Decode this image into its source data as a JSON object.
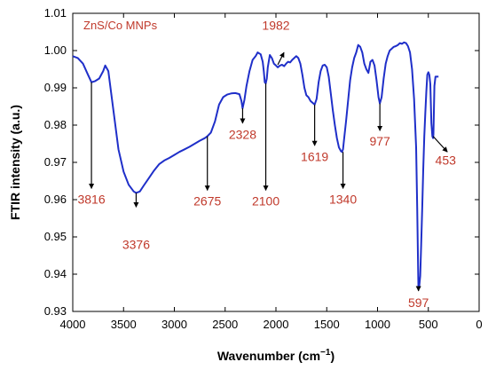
{
  "chart_data": {
    "type": "line",
    "xlabel": "Wavenumber (cm",
    "xlabel_sup": "−1",
    "xlabel_tail": ")",
    "ylabel": "FTIR intensity (a.u.)",
    "xlim": [
      4000,
      0
    ],
    "ylim": [
      0.93,
      1.01
    ],
    "x_ticks": [
      "4000",
      "3500",
      "3000",
      "2500",
      "2000",
      "1500",
      "1000",
      "500",
      "0"
    ],
    "y_ticks": [
      "0.93",
      "0.94",
      "0.95",
      "0.96",
      "0.97",
      "0.98",
      "0.99",
      "1.00",
      "1.01"
    ],
    "series": [
      {
        "name": "ZnS/Co MNPs",
        "color": "#1f2fc9",
        "x": [
          4000,
          3950,
          3900,
          3850,
          3816,
          3780,
          3740,
          3700,
          3680,
          3650,
          3600,
          3550,
          3500,
          3450,
          3400,
          3376,
          3340,
          3300,
          3250,
          3200,
          3150,
          3100,
          3050,
          3000,
          2950,
          2900,
          2850,
          2800,
          2750,
          2700,
          2675,
          2640,
          2600,
          2560,
          2520,
          2480,
          2440,
          2400,
          2360,
          2340,
          2328,
          2310,
          2290,
          2260,
          2230,
          2200,
          2180,
          2150,
          2130,
          2120,
          2110,
          2100,
          2090,
          2080,
          2060,
          2040,
          2020,
          2000,
          1982,
          1960,
          1940,
          1920,
          1900,
          1880,
          1860,
          1840,
          1820,
          1800,
          1780,
          1760,
          1740,
          1720,
          1700,
          1680,
          1660,
          1640,
          1619,
          1600,
          1580,
          1560,
          1540,
          1520,
          1500,
          1480,
          1460,
          1440,
          1420,
          1400,
          1380,
          1360,
          1350,
          1340,
          1330,
          1310,
          1290,
          1270,
          1250,
          1230,
          1210,
          1190,
          1170,
          1150,
          1130,
          1110,
          1090,
          1070,
          1050,
          1030,
          1010,
          990,
          977,
          960,
          940,
          920,
          900,
          880,
          860,
          840,
          820,
          800,
          780,
          760,
          740,
          720,
          700,
          680,
          660,
          640,
          620,
          610,
          600,
          597,
          590,
          580,
          570,
          560,
          550,
          540,
          530,
          520,
          510,
          500,
          490,
          480,
          470,
          460,
          453,
          450,
          440,
          430,
          420,
          410,
          400
        ],
        "values": [
          0.9985,
          0.998,
          0.9965,
          0.9935,
          0.9915,
          0.9918,
          0.9925,
          0.9945,
          0.996,
          0.9945,
          0.984,
          0.9735,
          0.9675,
          0.964,
          0.9622,
          0.9618,
          0.9622,
          0.9638,
          0.9658,
          0.9678,
          0.9695,
          0.9705,
          0.9712,
          0.972,
          0.9728,
          0.9735,
          0.9742,
          0.975,
          0.9758,
          0.9765,
          0.977,
          0.978,
          0.981,
          0.9855,
          0.9875,
          0.9882,
          0.9885,
          0.9886,
          0.9883,
          0.9865,
          0.9845,
          0.9868,
          0.9905,
          0.9945,
          0.9975,
          0.9985,
          0.9995,
          0.999,
          0.997,
          0.9945,
          0.9915,
          0.9912,
          0.9925,
          0.9955,
          0.9988,
          0.998,
          0.9965,
          0.996,
          0.9955,
          0.996,
          0.9962,
          0.9958,
          0.9965,
          0.997,
          0.9968,
          0.9975,
          0.998,
          0.9985,
          0.998,
          0.9965,
          0.9935,
          0.99,
          0.988,
          0.9875,
          0.9865,
          0.986,
          0.9855,
          0.987,
          0.9915,
          0.9945,
          0.996,
          0.9962,
          0.9955,
          0.993,
          0.9885,
          0.984,
          0.98,
          0.9765,
          0.974,
          0.973,
          0.9728,
          0.9735,
          0.976,
          0.981,
          0.9865,
          0.992,
          0.9955,
          0.998,
          0.9995,
          1.0015,
          1.001,
          0.9995,
          0.9965,
          0.995,
          0.994,
          0.997,
          0.9975,
          0.996,
          0.992,
          0.9875,
          0.9858,
          0.9875,
          0.9925,
          0.9965,
          0.9985,
          1.0,
          1.0005,
          1.001,
          1.0012,
          1.0015,
          1.002,
          1.0018,
          1.0022,
          1.002,
          1.0012,
          0.9995,
          0.995,
          0.987,
          0.974,
          0.958,
          0.9405,
          0.936,
          0.9365,
          0.9395,
          0.948,
          0.958,
          0.968,
          0.977,
          0.983,
          0.989,
          0.9935,
          0.9942,
          0.9935,
          0.991,
          0.9805,
          0.977,
          0.9765,
          0.9775,
          0.9905,
          0.993,
          0.993,
          0.993,
          0.993
        ]
      }
    ],
    "annotations": [
      {
        "label": "3816",
        "x": 3816,
        "from": 0.9915,
        "to": 0.963,
        "text_y": 0.9589,
        "text_x": 3816,
        "anchor": "middle"
      },
      {
        "label": "3376",
        "x": 3376,
        "from": 0.9618,
        "to": 0.958,
        "text_y": 0.9468,
        "text_x": 3376,
        "anchor": "middle"
      },
      {
        "label": "2675",
        "x": 2675,
        "from": 0.977,
        "to": 0.9625,
        "text_y": 0.9584,
        "text_x": 2675,
        "anchor": "middle"
      },
      {
        "label": "2328",
        "x": 2328,
        "from": 0.9845,
        "to": 0.9805,
        "text_y": 0.9763,
        "text_x": 2328,
        "anchor": "middle"
      },
      {
        "label": "2100",
        "x": 2100,
        "from": 0.9912,
        "to": 0.9625,
        "text_y": 0.9584,
        "text_x": 2100,
        "anchor": "middle"
      },
      {
        "label": "1982",
        "x": 1982,
        "from": 0.9962,
        "to": 0.9995,
        "text_y": 1.0056,
        "text_x": 2000,
        "anchor": "middle"
      },
      {
        "label": "1619",
        "x": 1619,
        "from": 0.9855,
        "to": 0.9745,
        "text_y": 0.9703,
        "text_x": 1619,
        "anchor": "middle"
      },
      {
        "label": "1340",
        "x": 1340,
        "from": 0.9728,
        "to": 0.963,
        "text_y": 0.9589,
        "text_x": 1340,
        "anchor": "middle"
      },
      {
        "label": "977",
        "x": 977,
        "from": 0.9858,
        "to": 0.9785,
        "text_y": 0.9745,
        "text_x": 977,
        "anchor": "middle"
      },
      {
        "label": "453",
        "x": 453,
        "from": 0.977,
        "to": 0.9728,
        "text_y": 0.9694,
        "text_x": 330,
        "anchor": "middle"
      },
      {
        "label": "597",
        "x": 597,
        "from": 0.9365,
        "to": 0.9355,
        "text_y": 0.9312,
        "text_x": 597,
        "anchor": "middle"
      }
    ],
    "grid": false,
    "legend": "top-left",
    "colors": {
      "line": "#1f2fc9",
      "peak_label": "#c0392b",
      "legend_text": "#c0392b",
      "axis": "#000000"
    }
  }
}
